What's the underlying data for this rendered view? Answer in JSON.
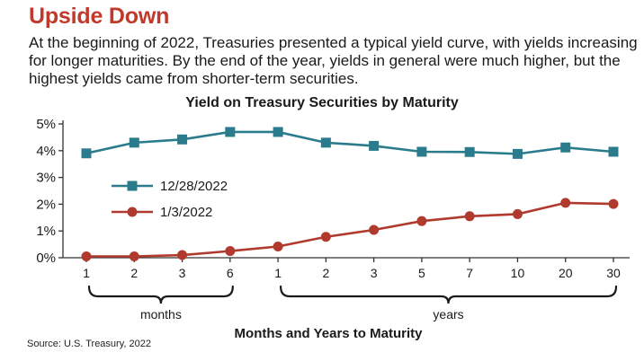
{
  "headline": "Upside Down",
  "intro": "At the beginning of 2022, Treasuries presented a typical yield curve, with yields increasing for longer maturities. By the end of the year, yields in general were much higher, but the highest yields came from shorter-term securities.",
  "source": "Source: U.S. Treasury, 2022",
  "colors": {
    "headline": "#c0392b",
    "series_2022_12": "#2a7c8c",
    "series_2022_01": "#b03a2e",
    "axis": "#333333"
  },
  "chart_data": {
    "type": "line",
    "title": "Yield on Treasury Securities by Maturity",
    "xlabel": "Months and Years to Maturity",
    "ylabel": "",
    "categories": [
      "1",
      "2",
      "3",
      "6",
      "1",
      "2",
      "3",
      "5",
      "7",
      "10",
      "20",
      "30"
    ],
    "groups": [
      {
        "label": "months",
        "from": 0,
        "to": 3
      },
      {
        "label": "years",
        "from": 4,
        "to": 11
      }
    ],
    "yticks": [
      "0%",
      "1%",
      "2%",
      "3%",
      "4%",
      "5%"
    ],
    "ylim": [
      0,
      5
    ],
    "legend_position": "left-center",
    "grid": false,
    "series": [
      {
        "name": "12/28/2022",
        "marker": "square",
        "color": "#2a7c8c",
        "values": [
          3.9,
          4.3,
          4.42,
          4.7,
          4.7,
          4.3,
          4.18,
          3.96,
          3.95,
          3.88,
          4.12,
          3.96
        ]
      },
      {
        "name": "1/3/2022",
        "marker": "circle",
        "color": "#b03a2e",
        "values": [
          0.05,
          0.05,
          0.1,
          0.25,
          0.42,
          0.78,
          1.04,
          1.37,
          1.55,
          1.63,
          2.05,
          2.01
        ]
      }
    ]
  }
}
